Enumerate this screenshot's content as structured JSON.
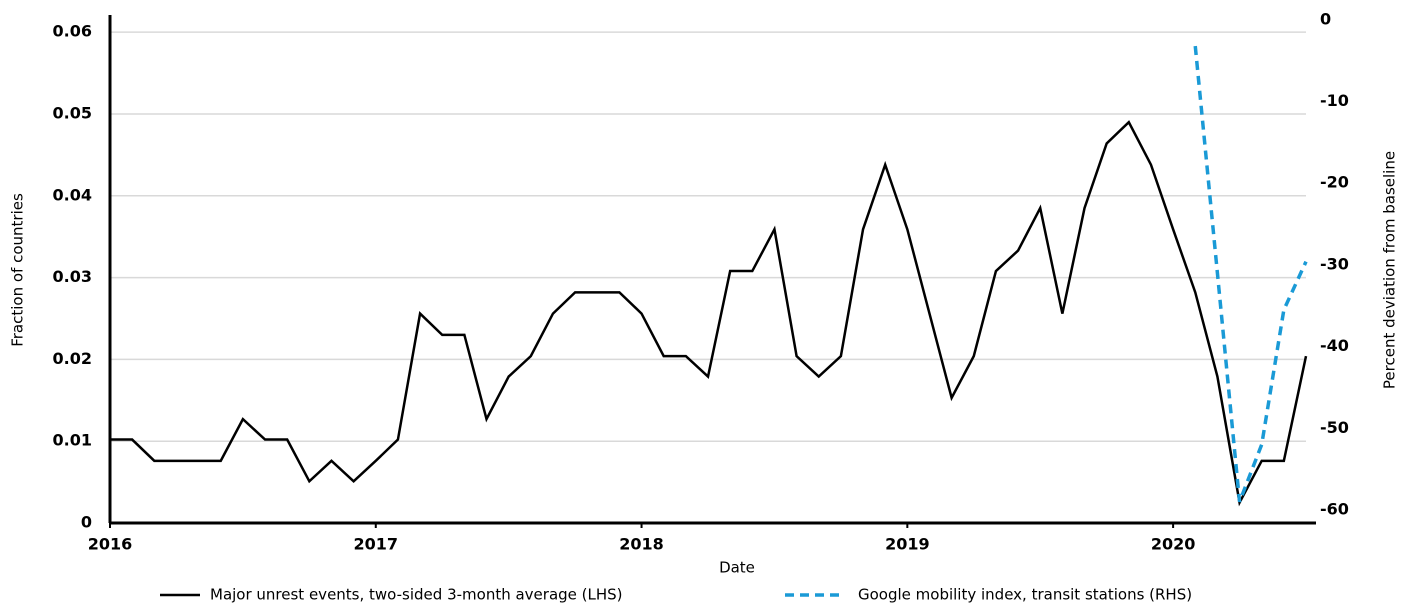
{
  "chart_data": {
    "type": "line",
    "xlabel": "Date",
    "ylabel": "Fraction of countries",
    "y2label": "Percent deviation from baseline",
    "x": [
      "2016-01",
      "2016-02",
      "2016-03",
      "2016-04",
      "2016-05",
      "2016-06",
      "2016-07",
      "2016-08",
      "2016-09",
      "2016-10",
      "2016-11",
      "2016-12",
      "2017-01",
      "2017-02",
      "2017-03",
      "2017-04",
      "2017-05",
      "2017-06",
      "2017-07",
      "2017-08",
      "2017-09",
      "2017-10",
      "2017-11",
      "2017-12",
      "2018-01",
      "2018-02",
      "2018-03",
      "2018-04",
      "2018-05",
      "2018-06",
      "2018-07",
      "2018-08",
      "2018-09",
      "2018-10",
      "2018-11",
      "2018-12",
      "2019-01",
      "2019-02",
      "2019-03",
      "2019-04",
      "2019-05",
      "2019-06",
      "2019-07",
      "2019-08",
      "2019-09",
      "2019-10",
      "2019-11",
      "2019-12",
      "2020-01",
      "2020-02",
      "2020-03",
      "2020-04",
      "2020-05",
      "2020-06",
      "2020-07"
    ],
    "series": [
      {
        "name": "Major unrest events, two-sided 3-month average (LHS)",
        "color": "#000000",
        "dash": false,
        "values": [
          0.0102,
          0.0102,
          0.0076,
          0.0076,
          0.0076,
          0.0076,
          0.0127,
          0.0102,
          0.0102,
          0.0051,
          0.0076,
          0.0051,
          0.0076,
          0.0102,
          0.0256,
          0.023,
          0.023,
          0.0127,
          0.0179,
          0.0204,
          0.0256,
          0.0282,
          0.0282,
          0.0282,
          0.0256,
          0.0204,
          0.0204,
          0.0179,
          0.0308,
          0.0308,
          0.0359,
          0.0204,
          0.0179,
          0.0204,
          0.0359,
          0.0438,
          0.0359,
          0.0256,
          0.0153,
          0.0204,
          0.0308,
          0.0333,
          0.0385,
          0.0256,
          0.0385,
          0.0464,
          0.049,
          0.0438,
          0.0359,
          0.0282,
          0.0179,
          0.0025,
          0.0076,
          0.0076,
          0.0204
        ]
      },
      {
        "name": "Google mobility index, transit stations (RHS)",
        "color": "#1a9ad6",
        "dash": true,
        "axis": "y2",
        "values": [
          null,
          null,
          null,
          null,
          null,
          null,
          null,
          null,
          null,
          null,
          null,
          null,
          null,
          null,
          null,
          null,
          null,
          null,
          null,
          null,
          null,
          null,
          null,
          null,
          null,
          null,
          null,
          null,
          null,
          null,
          null,
          null,
          null,
          null,
          null,
          null,
          null,
          null,
          null,
          null,
          null,
          null,
          null,
          null,
          null,
          null,
          null,
          null,
          null,
          -3.2,
          -31,
          -59,
          -52,
          -35.5,
          -29.6
        ]
      }
    ],
    "xlim": [
      "2016-01",
      "2020-07"
    ],
    "xticks": [
      "2016",
      "2017",
      "2018",
      "2019",
      "2020"
    ],
    "ylim": [
      0,
      0.0621
    ],
    "yticks": [
      0,
      0.01,
      0.02,
      0.03,
      0.04,
      0.05,
      0.06
    ],
    "y2lim": [
      -61.6,
      0.6
    ],
    "y2ticks": [
      -60,
      -50,
      -40,
      -30,
      -20,
      -10,
      0
    ],
    "grid": true,
    "legend": "bottom"
  }
}
